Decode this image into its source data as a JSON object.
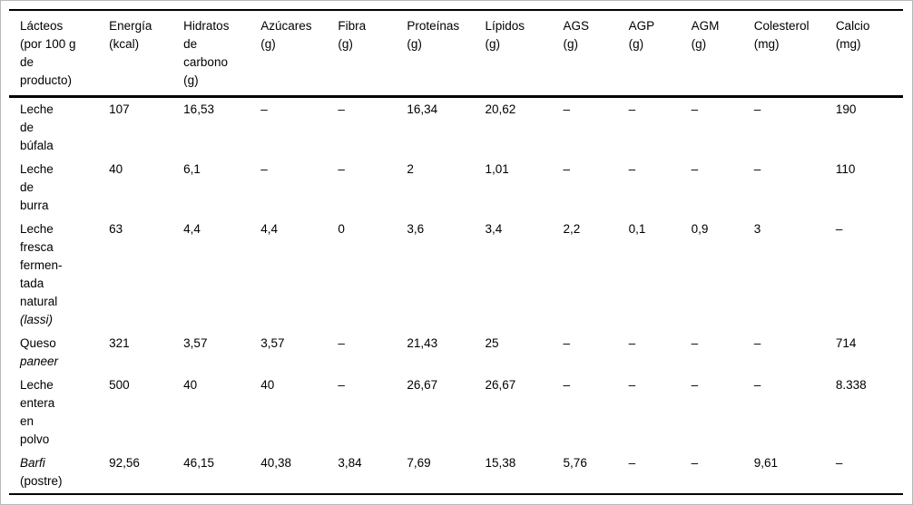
{
  "table": {
    "title": "Lácteos (por 100 g de producto)",
    "header": [
      "Lácteos\n(por 100 g\nde\nproducto)",
      "Energía\n(kcal)",
      "Hidratos\nde\ncarbono\n(g)",
      "Azúcares\n(g)",
      "Fibra\n(g)",
      "Proteínas\n(g)",
      "Lípidos\n(g)",
      "AGS\n(g)",
      "AGP\n(g)",
      "AGM\n(g)",
      "Colesterol\n(mg)",
      "Calcio\n(mg)"
    ],
    "rows": [
      {
        "name": [
          {
            "text": "Leche\nde\nbúfala",
            "italic": false
          }
        ],
        "values": [
          "107",
          "16,53",
          "–",
          "–",
          "16,34",
          "20,62",
          "–",
          "–",
          "–",
          "–",
          "190"
        ]
      },
      {
        "name": [
          {
            "text": "Leche\nde\nburra",
            "italic": false
          }
        ],
        "values": [
          "40",
          "6,1",
          "–",
          "–",
          "2",
          "1,01",
          "–",
          "–",
          "–",
          "–",
          "110"
        ]
      },
      {
        "name": [
          {
            "text": "Leche\nfresca\nfermen-\ntada\nnatural\n",
            "italic": false
          },
          {
            "text": "(lassi)",
            "italic": true
          }
        ],
        "values": [
          "63",
          "4,4",
          "4,4",
          "0",
          "3,6",
          "3,4",
          "2,2",
          "0,1",
          "0,9",
          "3",
          "–"
        ]
      },
      {
        "name": [
          {
            "text": "Queso\n",
            "italic": false
          },
          {
            "text": "paneer",
            "italic": true
          }
        ],
        "values": [
          "321",
          "3,57",
          "3,57",
          "–",
          "21,43",
          "25",
          "–",
          "–",
          "–",
          "–",
          "714"
        ]
      },
      {
        "name": [
          {
            "text": "Leche\nentera\nen\npolvo",
            "italic": false
          }
        ],
        "values": [
          "500",
          "40",
          "40",
          "–",
          "26,67",
          "26,67",
          "–",
          "–",
          "–",
          "–",
          "8.338"
        ]
      },
      {
        "name": [
          {
            "text": "Barfi",
            "italic": true
          },
          {
            "text": "\n(postre)",
            "italic": false
          }
        ],
        "values": [
          "92,56",
          "46,15",
          "40,38",
          "3,84",
          "7,69",
          "15,38",
          "5,76",
          "–",
          "–",
          "9,61",
          "–"
        ]
      }
    ]
  }
}
